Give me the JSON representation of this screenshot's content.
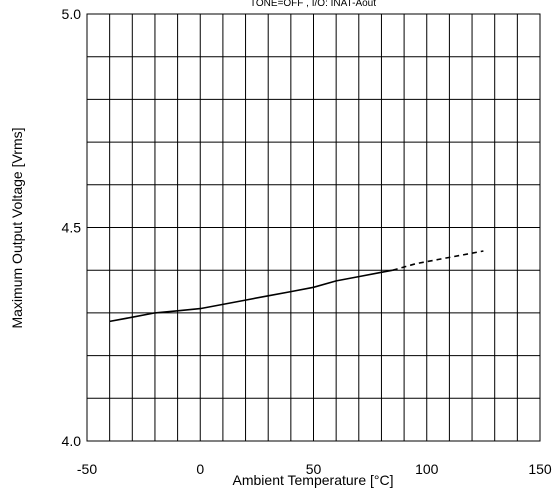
{
  "chart_data": {
    "type": "line",
    "subtitle": "TONE=OFF , I/O: INAT-Aout",
    "xlabel": "Ambient Temperature  [°C]",
    "ylabel": "Maximum Output Voltage [Vrms]",
    "xlim": [
      -50,
      150
    ],
    "ylim": [
      4.0,
      5.0
    ],
    "x_ticks": [
      "-50",
      "0",
      "50",
      "100",
      "150"
    ],
    "y_ticks": [
      "4.0",
      "4.5",
      "5.0"
    ],
    "grid": true,
    "series": [
      {
        "style": "solid",
        "points": [
          [
            -40,
            4.28
          ],
          [
            -30,
            4.29
          ],
          [
            -20,
            4.3
          ],
          [
            -10,
            4.305
          ],
          [
            0,
            4.31
          ],
          [
            10,
            4.32
          ],
          [
            20,
            4.33
          ],
          [
            30,
            4.34
          ],
          [
            40,
            4.35
          ],
          [
            50,
            4.36
          ],
          [
            60,
            4.375
          ],
          [
            70,
            4.385
          ],
          [
            80,
            4.395
          ],
          [
            85,
            4.4
          ]
        ]
      },
      {
        "style": "dashed",
        "points": [
          [
            85,
            4.4
          ],
          [
            95,
            4.415
          ],
          [
            105,
            4.425
          ],
          [
            115,
            4.435
          ],
          [
            125,
            4.445
          ]
        ]
      }
    ]
  }
}
